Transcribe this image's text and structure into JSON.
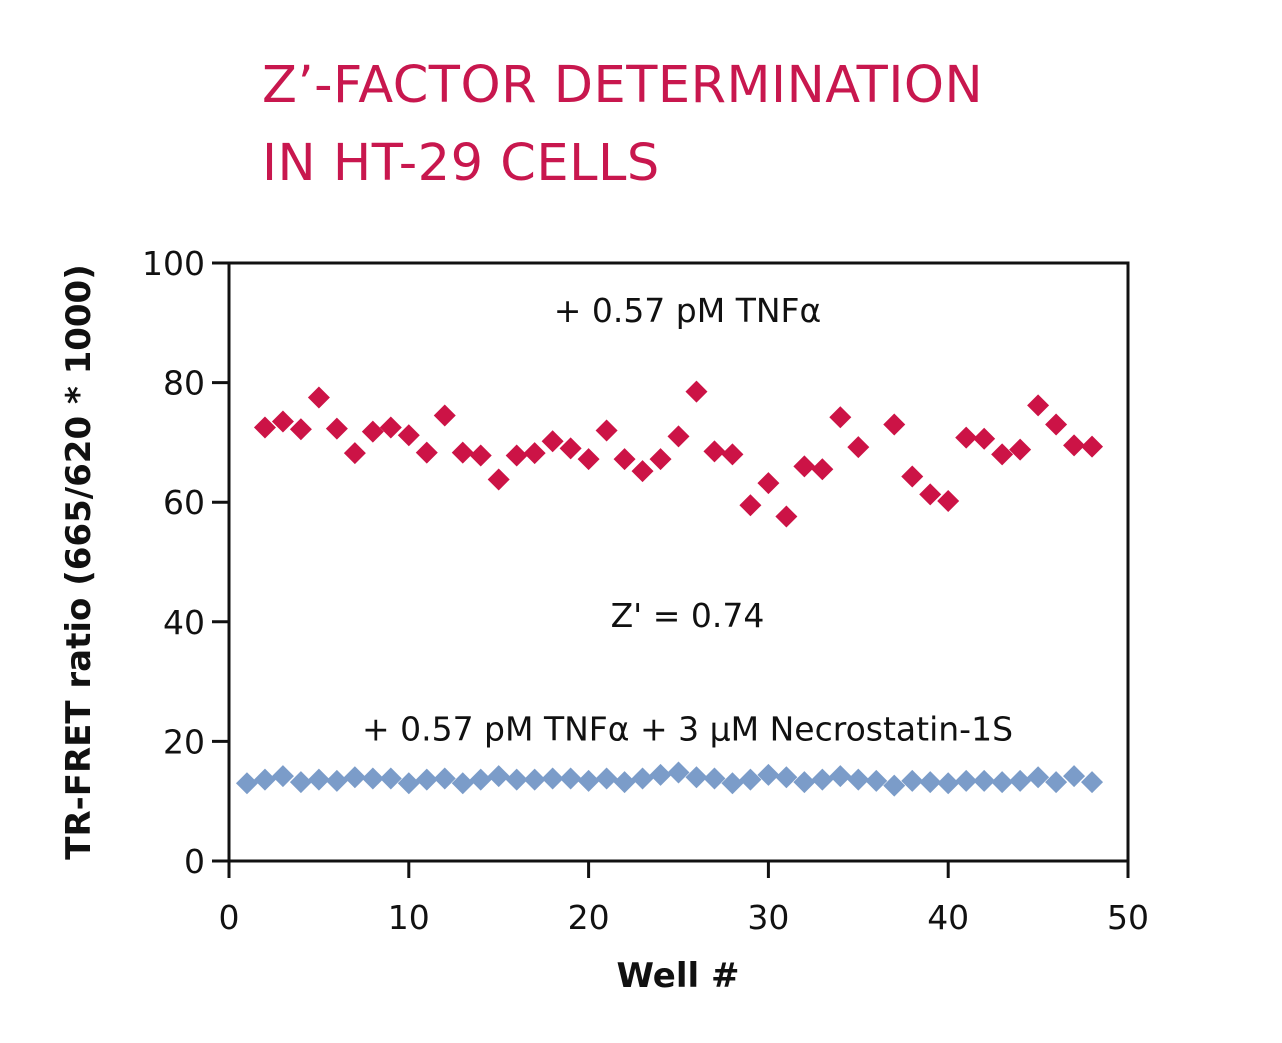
{
  "colors": {
    "title": "#c8174e",
    "series_tnf": "#cc1346",
    "series_tnf_nec": "#7b9cc9",
    "axis": "#111111"
  },
  "chart_data": {
    "type": "scatter",
    "title": [
      "Z’-FACTOR DETERMINATION",
      "IN HT-29 CELLS"
    ],
    "xlabel": "Well #",
    "ylabel": "TR-FRET ratio (665/620 * 1000)",
    "xlim": [
      0,
      50
    ],
    "ylim": [
      0,
      100
    ],
    "xticks": [
      0,
      10,
      20,
      30,
      40,
      50
    ],
    "yticks": [
      0,
      20,
      40,
      60,
      80,
      100
    ],
    "grid": false,
    "marker": "diamond",
    "annotations": [
      {
        "text": "+ 0.57 pM TNFα",
        "x": 25.5,
        "y": 92
      },
      {
        "text": "Z' = 0.74",
        "x": 25.5,
        "y": 41
      },
      {
        "text": "+ 0.57 pM TNFα + 3 µM Necrostatin-1S",
        "x": 25.5,
        "y": 22
      }
    ],
    "series": [
      {
        "label": "+ 0.57 pM TNFα",
        "color": "#cc1346",
        "x": [
          2,
          3,
          4,
          5,
          6,
          7,
          8,
          9,
          10,
          11,
          12,
          13,
          14,
          15,
          16,
          17,
          18,
          19,
          20,
          21,
          22,
          23,
          24,
          25,
          26,
          27,
          28,
          29,
          30,
          31,
          32,
          33,
          34,
          35,
          36,
          37,
          38,
          39,
          40,
          41,
          42,
          43,
          44,
          45,
          46,
          47,
          48
        ],
        "y": [
          72.5,
          73.5,
          72.2,
          77.5,
          72.3,
          68.2,
          71.8,
          72.5,
          71.2,
          68.3,
          74.5,
          68.3,
          67.8,
          63.8,
          67.8,
          68.2,
          70.2,
          69.0,
          67.2,
          72.0,
          67.2,
          65.2,
          67.2,
          71.0,
          78.5,
          68.5,
          68.0,
          59.5,
          63.2,
          57.6,
          66.0,
          65.5,
          74.2,
          69.2,
          null,
          73.0,
          64.3,
          61.3,
          60.2,
          70.8,
          70.6,
          68.0,
          68.8,
          76.2,
          73.0,
          69.5,
          69.3
        ]
      },
      {
        "label": "+ 0.57 pM TNFα + 3 µM Necrostatin-1S",
        "color": "#7b9cc9",
        "x": [
          1,
          2,
          3,
          4,
          5,
          6,
          7,
          8,
          9,
          10,
          11,
          12,
          13,
          14,
          15,
          16,
          17,
          18,
          19,
          20,
          21,
          22,
          23,
          24,
          25,
          26,
          27,
          28,
          29,
          30,
          31,
          32,
          33,
          34,
          35,
          36,
          37,
          38,
          39,
          40,
          41,
          42,
          43,
          44,
          45,
          46,
          47,
          48
        ],
        "y": [
          13.0,
          13.6,
          14.2,
          13.2,
          13.6,
          13.4,
          14.0,
          13.8,
          13.8,
          13.0,
          13.6,
          13.8,
          13.0,
          13.6,
          14.2,
          13.6,
          13.6,
          13.8,
          13.8,
          13.4,
          13.8,
          13.2,
          13.8,
          14.4,
          14.8,
          14.0,
          13.8,
          13.0,
          13.6,
          14.4,
          14.0,
          13.2,
          13.6,
          14.2,
          13.6,
          13.4,
          12.6,
          13.4,
          13.2,
          13.0,
          13.4,
          13.4,
          13.2,
          13.4,
          14.0,
          13.2,
          14.2,
          13.2
        ]
      }
    ]
  }
}
